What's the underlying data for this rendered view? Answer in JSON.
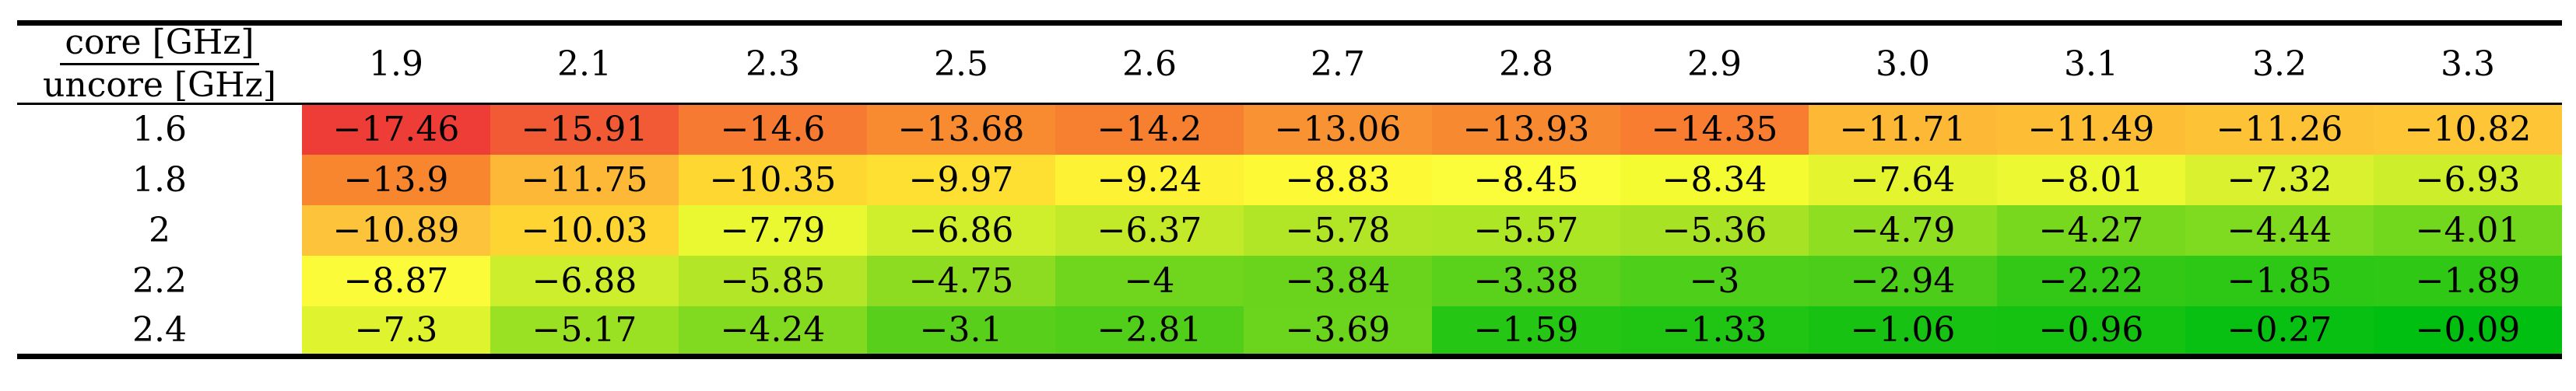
{
  "corner": {
    "numerator": "core [GHz]",
    "denominator": "uncore [GHz]"
  },
  "chart_data": {
    "type": "heatmap",
    "x_label": "core [GHz]",
    "y_label": "uncore [GHz]",
    "x_categories": [
      "1.9",
      "2.1",
      "2.3",
      "2.5",
      "2.6",
      "2.7",
      "2.8",
      "2.9",
      "3.0",
      "3.1",
      "3.2",
      "3.3"
    ],
    "y_categories": [
      "1.6",
      "1.8",
      "2",
      "2.2",
      "2.4"
    ],
    "values": [
      [
        "−17.46",
        "−15.91",
        "−14.6",
        "−13.68",
        "−14.2",
        "−13.06",
        "−13.93",
        "−14.35",
        "−11.71",
        "−11.49",
        "−11.26",
        "−10.82"
      ],
      [
        "−13.9",
        "−11.75",
        "−10.35",
        "−9.97",
        "−9.24",
        "−8.83",
        "−8.45",
        "−8.34",
        "−7.64",
        "−8.01",
        "−7.32",
        "−6.93"
      ],
      [
        "−10.89",
        "−10.03",
        "−7.79",
        "−6.86",
        "−6.37",
        "−5.78",
        "−5.57",
        "−5.36",
        "−4.79",
        "−4.27",
        "−4.44",
        "−4.01"
      ],
      [
        "−8.87",
        "−6.88",
        "−5.85",
        "−4.75",
        "−4",
        "−3.84",
        "−3.38",
        "−3",
        "−2.94",
        "−2.22",
        "−1.85",
        "−1.89"
      ],
      [
        "−7.3",
        "−5.17",
        "−4.24",
        "−3.1",
        "−2.81",
        "−3.69",
        "−1.59",
        "−1.33",
        "−1.06",
        "−0.96",
        "−0.27",
        "−0.09"
      ]
    ],
    "colors": [
      [
        "#ee3d36",
        "#f25a36",
        "#f67a32",
        "#f88a30",
        "#f77f30",
        "#f99232",
        "#f78a31",
        "#f87d31",
        "#fdb835",
        "#fdbd35",
        "#fec236",
        "#fec636"
      ],
      [
        "#f8862f",
        "#fdb838",
        "#fed730",
        "#fee033",
        "#fdf233",
        "#fdf935",
        "#fbfd3a",
        "#f4fb30",
        "#e4f52f",
        "#ecf831",
        "#d9f12f",
        "#cdee2b"
      ],
      [
        "#fdc33a",
        "#fdd431",
        "#e9f830",
        "#cfee2b",
        "#c2ea28",
        "#b1e626",
        "#ace625",
        "#a7e324",
        "#90de22",
        "#78d81e",
        "#7fdb1f",
        "#72d81d"
      ],
      [
        "#fbfb3a",
        "#ccee2c",
        "#b2e627",
        "#8edc22",
        "#6fd51d",
        "#6ad41c",
        "#5ad11a",
        "#4ecf19",
        "#4bcd19",
        "#34c816",
        "#2cc815",
        "#2ec815"
      ],
      [
        "#e0f32f",
        "#9be123",
        "#81da20",
        "#58cf1a",
        "#50ce19",
        "#6bd41d",
        "#26c614",
        "#20c413",
        "#17c212",
        "#15c212",
        "#08c011",
        "#00bf10"
      ]
    ]
  }
}
